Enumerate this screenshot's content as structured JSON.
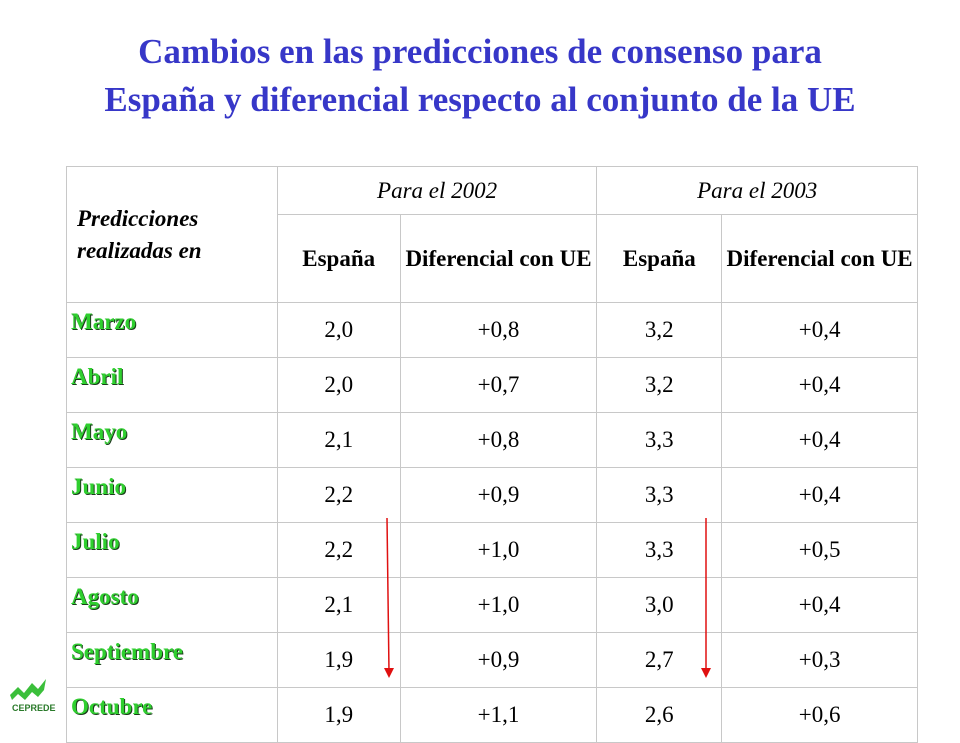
{
  "title": [
    "Cambios en las predicciones de consenso para",
    "España y diferencial respecto al conjunto de la UE"
  ],
  "table": {
    "row_header": "Predicciones realizadas en",
    "groups": [
      "Para el 2002",
      "Para el 2003"
    ],
    "subheaders": [
      "España",
      "Diferencial con UE",
      "España",
      "Diferencial con UE"
    ],
    "rows": [
      [
        "Marzo",
        "2,0",
        "+0,8",
        "3,2",
        "+0,4"
      ],
      [
        "Abril",
        "2,0",
        "+0,7",
        "3,2",
        "+0,4"
      ],
      [
        "Mayo",
        "2,1",
        "+0,8",
        "3,3",
        "+0,4"
      ],
      [
        "Junio",
        "2,2",
        "+0,9",
        "3,3",
        "+0,4"
      ],
      [
        "Julio",
        "2,2",
        "+1,0",
        "3,3",
        "+0,5"
      ],
      [
        "Agosto",
        "2,1",
        "+1,0",
        "3,0",
        "+0,4"
      ],
      [
        "Septiembre",
        "1,9",
        "+0,9",
        "2,7",
        "+0,3"
      ],
      [
        "Octubre",
        "1,9",
        "+1,1",
        "2,6",
        "+0,6"
      ]
    ]
  },
  "logo": "CEPREDE"
}
